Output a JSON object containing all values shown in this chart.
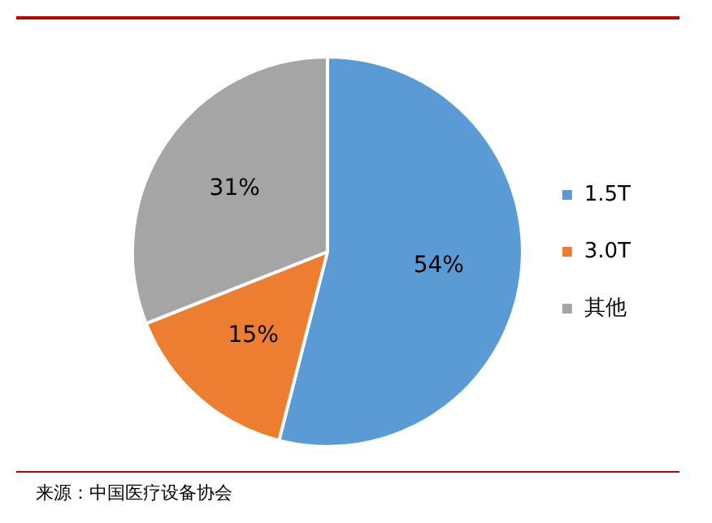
{
  "chart_data": {
    "type": "pie",
    "categories": [
      "1.5T",
      "3.0T",
      "其他"
    ],
    "values": [
      54,
      15,
      31
    ],
    "colors": [
      "#5b9bd5",
      "#ed7d31",
      "#a5a5a5"
    ],
    "value_labels": [
      "54%",
      "15%",
      "31%"
    ],
    "legend": "right",
    "annotations": [
      "来源：中国医疗设备协会"
    ]
  }
}
